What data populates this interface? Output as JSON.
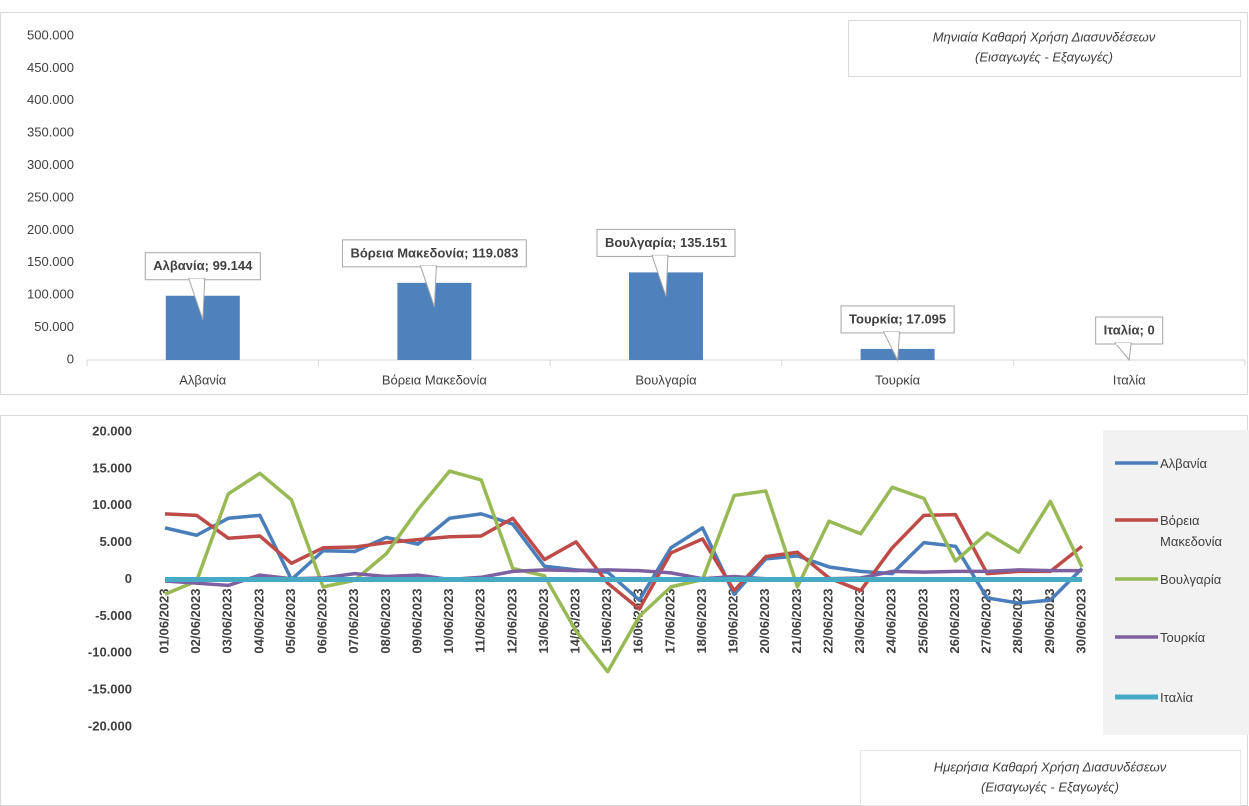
{
  "chart_data": [
    {
      "type": "bar",
      "title": "Μηνιαία Καθαρή Χρήση Διασυνδέσεων",
      "subtitle": "(Εισαγωγές - Εξαγωγές)",
      "categories": [
        "Αλβανία",
        "Βόρεια Μακεδονία",
        "Βουλγαρία",
        "Τουρκία",
        "Ιταλία"
      ],
      "values": [
        99144,
        119083,
        135151,
        17095,
        0
      ],
      "value_labels": [
        "Αλβανία; 99.144",
        "Βόρεια Μακεδονία; 119.083",
        "Βουλγαρία; 135.151",
        "Τουρκία; 17.095",
        "Ιταλία; 0"
      ],
      "color": "#4f81bd",
      "ylim": [
        0,
        500000
      ],
      "yticks": [
        0,
        {
          "value": 50000,
          "label": "50.000"
        },
        {
          "value": 100000,
          "label": "100.000"
        },
        {
          "value": 150000,
          "label": "150.000"
        },
        {
          "value": 200000,
          "label": "200.000"
        },
        {
          "value": 250000,
          "label": "250.000"
        },
        {
          "value": 300000,
          "label": "300.000"
        },
        {
          "value": 350000,
          "label": "350.000"
        },
        {
          "value": 400000,
          "label": "400.000"
        },
        {
          "value": 450000,
          "label": "450.000"
        },
        {
          "value": 500000,
          "label": "500.000"
        }
      ],
      "grid": false
    },
    {
      "type": "line",
      "title": "Ημερήσια Καθαρή Χρήση Διασυνδέσεων",
      "subtitle": "(Εισαγωγές - Εξαγωγές)",
      "categories": [
        "01/06/2023",
        "02/06/2023",
        "03/06/2023",
        "04/06/2023",
        "05/06/2023",
        "06/06/2023",
        "07/06/2023",
        "08/06/2023",
        "09/06/2023",
        "10/06/2023",
        "11/06/2023",
        "12/06/2023",
        "13/06/2023",
        "14/06/2023",
        "15/06/2023",
        "16/06/2023",
        "17/06/2023",
        "18/06/2023",
        "19/06/2023",
        "20/06/2023",
        "21/06/2023",
        "22/06/2023",
        "23/06/2023",
        "24/06/2023",
        "25/06/2023",
        "26/06/2023",
        "27/06/2023",
        "28/06/2023",
        "29/06/2023",
        "30/06/2023"
      ],
      "series": [
        {
          "name": "Αλβανία",
          "color": "#4a7ebb",
          "values": [
            7000,
            6000,
            8300,
            8700,
            0,
            3900,
            3800,
            5700,
            4800,
            8300,
            8900,
            7500,
            1800,
            1300,
            1000,
            -2800,
            4300,
            7000,
            -2000,
            2800,
            3200,
            1700,
            1100,
            800,
            5000,
            4500,
            -2500,
            -3200,
            -2800,
            1500
          ]
        },
        {
          "name": "Βόρεια Μακεδονία",
          "color": "#be4b48",
          "values": [
            8900,
            8700,
            5600,
            5900,
            2200,
            4300,
            4400,
            5000,
            5400,
            5800,
            5900,
            8300,
            2700,
            5100,
            -500,
            -4000,
            3600,
            5500,
            -1500,
            3100,
            3700,
            200,
            -1500,
            4300,
            8700,
            8800,
            800,
            1100,
            1100,
            4500
          ]
        },
        {
          "name": "Βουλγαρία",
          "color": "#98b954",
          "values": [
            -2000,
            -200,
            11600,
            14400,
            10800,
            -1000,
            -100,
            3500,
            9500,
            14700,
            13500,
            1500,
            500,
            -7000,
            -12500,
            -5000,
            -1000,
            0,
            11400,
            12000,
            -1000,
            7900,
            6200,
            12500,
            11000,
            2500,
            6300,
            3700,
            10600,
            1700
          ]
        },
        {
          "name": "Τουρκία",
          "color": "#7d60a0",
          "values": [
            -200,
            -500,
            -800,
            600,
            100,
            200,
            800,
            400,
            600,
            0,
            300,
            1100,
            1300,
            1200,
            1300,
            1200,
            900,
            100,
            400,
            100,
            100,
            100,
            200,
            1100,
            1000,
            1100,
            1100,
            1300,
            1200,
            1200
          ]
        },
        {
          "name": "Ιταλία",
          "color": "#46aac5",
          "values": [
            0,
            0,
            0,
            0,
            0,
            0,
            0,
            0,
            0,
            0,
            0,
            0,
            0,
            0,
            0,
            0,
            0,
            0,
            0,
            0,
            0,
            0,
            0,
            0,
            0,
            0,
            0,
            0,
            0,
            0
          ]
        }
      ],
      "ylim": [
        -20000,
        20000
      ],
      "yticks": [
        {
          "value": -20000,
          "label": "-20.000"
        },
        {
          "value": -15000,
          "label": "-15.000"
        },
        {
          "value": -10000,
          "label": "-10.000"
        },
        {
          "value": -5000,
          "label": "-5.000"
        },
        0,
        {
          "value": 5000,
          "label": "5.000"
        },
        {
          "value": 10000,
          "label": "10.000"
        },
        {
          "value": 15000,
          "label": "15.000"
        },
        {
          "value": 20000,
          "label": "20.000"
        }
      ],
      "grid": false,
      "legend": "right"
    }
  ]
}
